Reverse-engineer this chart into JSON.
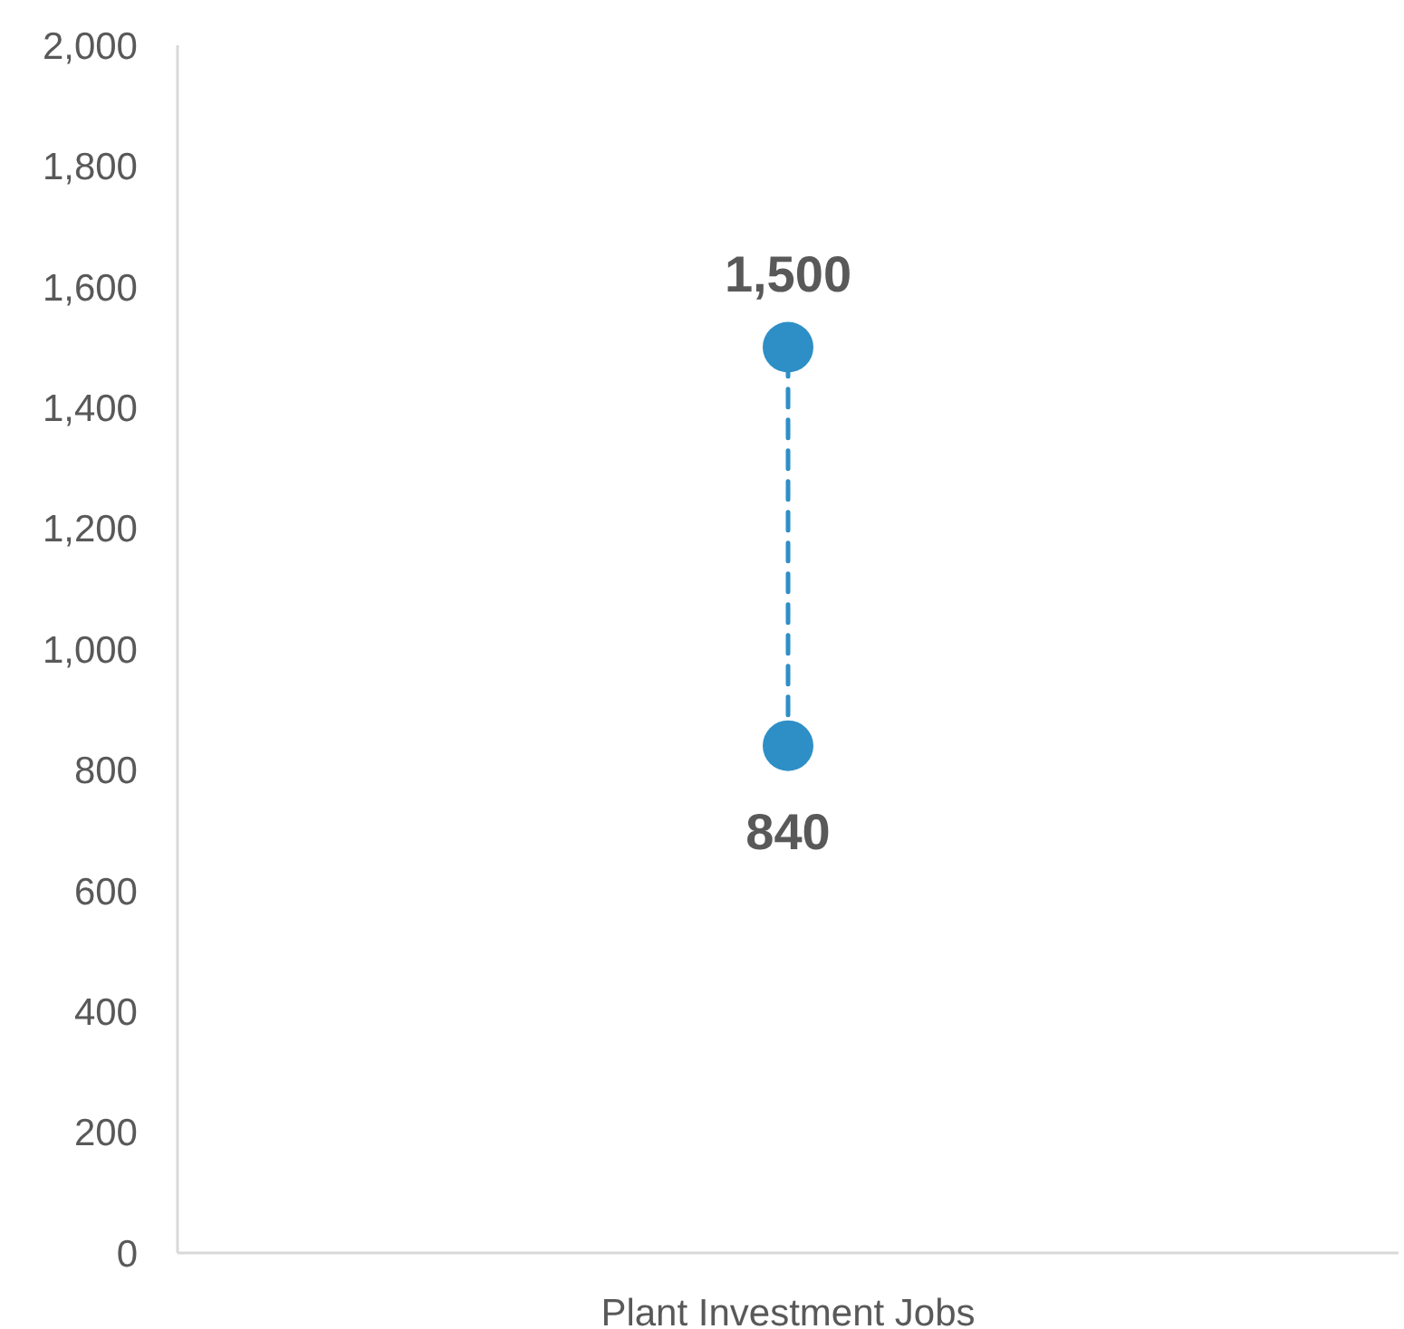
{
  "chart_data": {
    "type": "line",
    "categories": [
      "Plant Investment Jobs"
    ],
    "series": [
      {
        "color": "#2e8fc6",
        "x": [
          "Plant Investment Jobs",
          "Plant Investment Jobs"
        ],
        "values": [
          840,
          1500
        ],
        "value_labels": [
          "840",
          "1,500"
        ]
      }
    ],
    "ylim": [
      0,
      2000
    ],
    "yticks": [
      {
        "value": 0,
        "label": "0"
      },
      {
        "value": 200,
        "label": "200"
      },
      {
        "value": 400,
        "label": "400"
      },
      {
        "value": 600,
        "label": "600"
      },
      {
        "value": 800,
        "label": "800"
      },
      {
        "value": 1000,
        "label": "1,000"
      },
      {
        "value": 1200,
        "label": "1,200"
      },
      {
        "value": 1400,
        "label": "1,400"
      },
      {
        "value": 1600,
        "label": "1,600"
      },
      {
        "value": 1800,
        "label": "1,800"
      },
      {
        "value": 2000,
        "label": "2,000"
      }
    ],
    "grid": false,
    "marker": "circle",
    "line_style": "dashed"
  }
}
